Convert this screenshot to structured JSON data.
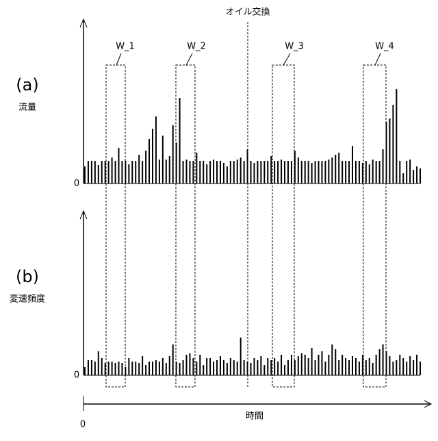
{
  "chart_data": [
    {
      "type": "bar",
      "label": "(a)",
      "ylabel": "流量",
      "color": "#000000",
      "ylim": [
        0,
        240
      ],
      "yticks": [
        0
      ],
      "values": [
        25,
        33,
        33,
        33,
        27,
        33,
        33,
        33,
        38,
        33,
        52,
        33,
        33,
        28,
        33,
        33,
        42,
        33,
        48,
        65,
        80,
        98,
        35,
        70,
        35,
        40,
        85,
        60,
        125,
        33,
        35,
        33,
        33,
        45,
        33,
        33,
        28,
        33,
        35,
        33,
        33,
        30,
        25,
        33,
        33,
        35,
        38,
        33,
        50,
        33,
        30,
        33,
        33,
        33,
        33,
        40,
        33,
        33,
        35,
        33,
        33,
        33,
        48,
        38,
        33,
        33,
        33,
        30,
        33,
        33,
        33,
        33,
        35,
        38,
        42,
        45,
        33,
        33,
        33,
        55,
        33,
        33,
        30,
        33,
        28,
        35,
        33,
        33,
        50,
        90,
        95,
        115,
        138,
        33,
        15,
        33,
        35,
        20,
        25,
        22
      ]
    },
    {
      "type": "bar",
      "label": "(b)",
      "ylabel": "変速頻度",
      "color": "#000000",
      "ylim": [
        0,
        240
      ],
      "yticks": [
        0
      ],
      "xlabel": "時間",
      "xticks": [
        0
      ],
      "values": [
        12,
        22,
        22,
        20,
        35,
        25,
        18,
        20,
        20,
        18,
        20,
        18,
        12,
        25,
        20,
        20,
        18,
        28,
        15,
        20,
        20,
        22,
        20,
        25,
        18,
        28,
        45,
        20,
        18,
        22,
        30,
        32,
        25,
        20,
        30,
        15,
        25,
        25,
        20,
        22,
        28,
        22,
        18,
        25,
        22,
        20,
        55,
        22,
        20,
        18,
        25,
        22,
        28,
        15,
        25,
        22,
        25,
        20,
        30,
        15,
        22,
        30,
        22,
        28,
        32,
        30,
        25,
        40,
        22,
        30,
        35,
        20,
        30,
        45,
        38,
        22,
        30,
        25,
        22,
        28,
        25,
        20,
        30,
        22,
        25,
        18,
        30,
        38,
        45,
        35,
        28,
        20,
        22,
        30,
        25,
        20,
        28,
        22,
        30,
        20
      ]
    }
  ],
  "annotations": {
    "event": "オイル交換",
    "windows": [
      "W_1",
      "W_2",
      "W_3",
      "W_4"
    ]
  }
}
